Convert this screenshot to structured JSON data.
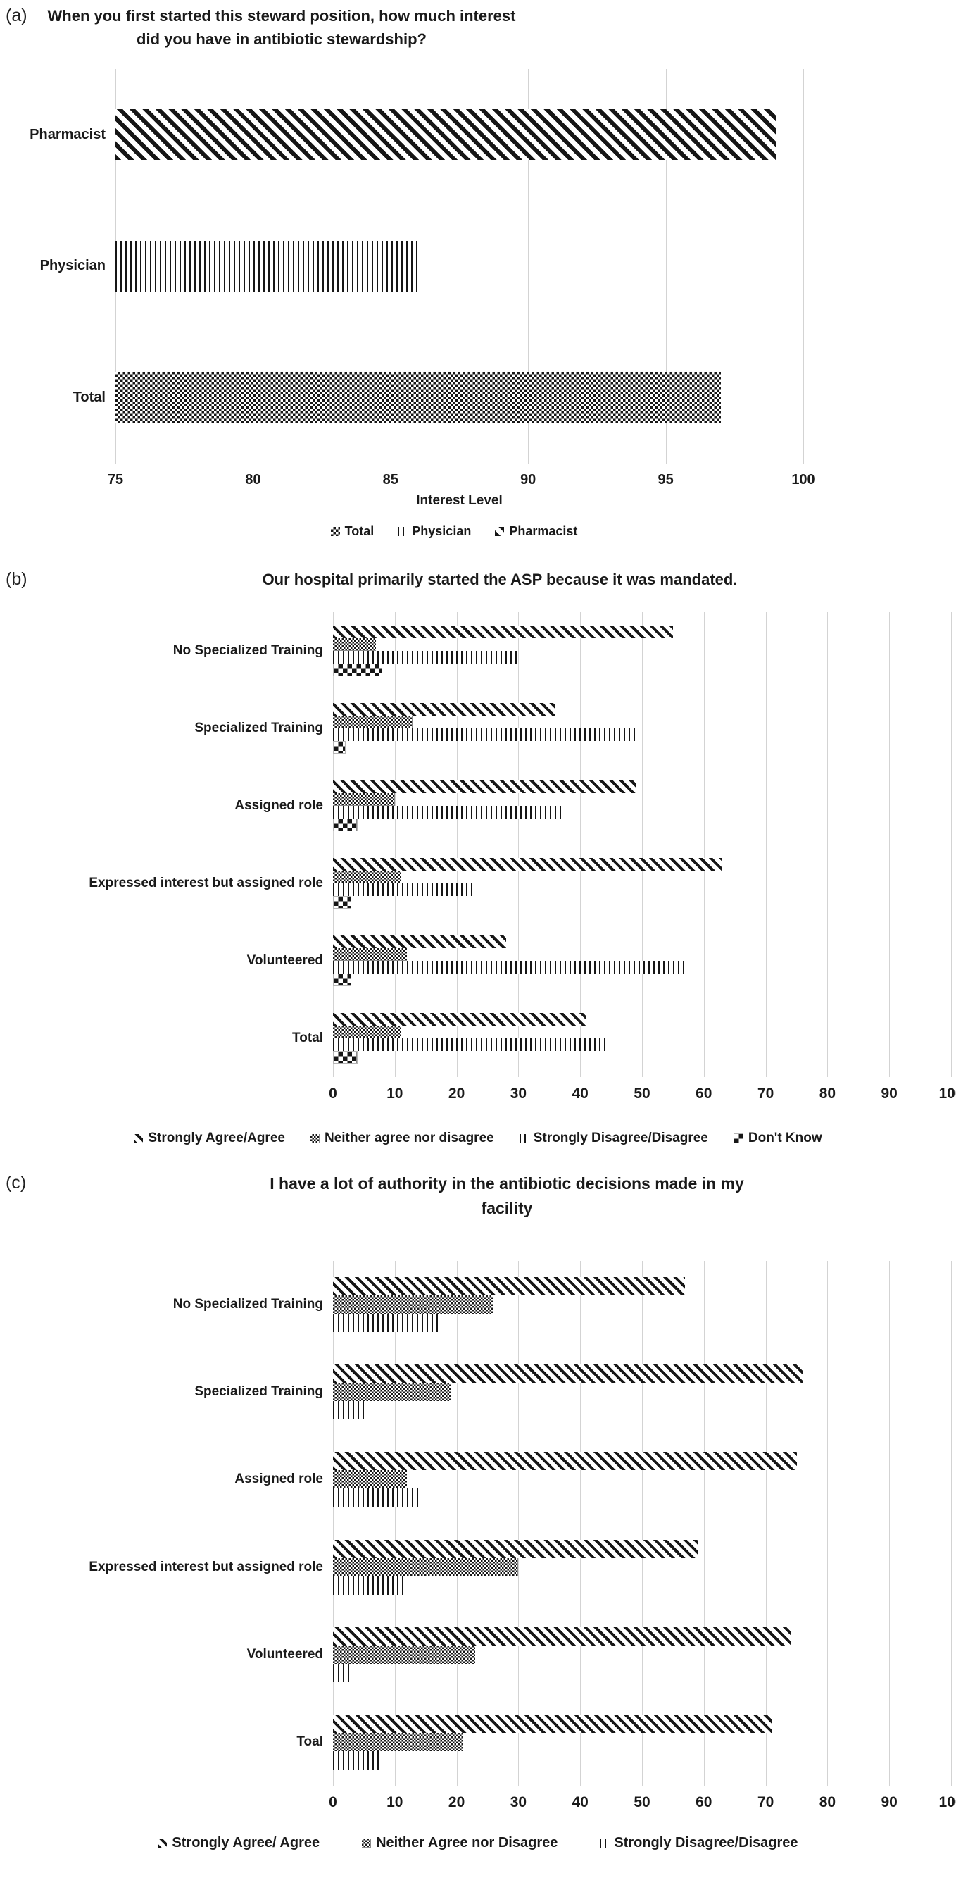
{
  "figure": {
    "background": "#ffffff",
    "text_color": "#1a1a1a",
    "gridline_color": "#d3d3d3",
    "bar_color": "#161616"
  },
  "panel_a": {
    "label": "(a)",
    "title_line1": "When you first started this steward position, how much interest",
    "title_line2": "did you have in antibiotic stewardship?",
    "xaxis_title": "Interest Level",
    "legend": [
      {
        "label": "Total",
        "pattern": "pat-dots"
      },
      {
        "label": "Physician",
        "pattern": "pat-vlines"
      },
      {
        "label": "Pharmacist",
        "pattern": "pat-diag-a"
      }
    ],
    "chart_data": {
      "type": "bar",
      "orientation": "horizontal",
      "title": "When you first started this steward position, how much interest did you have in antibiotic stewardship?",
      "xlabel": "Interest Level",
      "ylabel": "",
      "xlim": [
        75,
        100
      ],
      "xticks": [
        75,
        80,
        85,
        90,
        95,
        100
      ],
      "grid": true,
      "legend_position": "bottom",
      "categories": [
        "Pharmacist",
        "Physician",
        "Total"
      ],
      "values": [
        99,
        86,
        97
      ],
      "patterns": [
        "pat-diag-a",
        "pat-vlines",
        "pat-dots"
      ]
    }
  },
  "panel_b": {
    "label": "(b)",
    "title_line1": "Our hospital primarily started the ASP because it was mandated.",
    "legend": [
      {
        "label": "Strongly Agree/Agree",
        "pattern": "pat-diag"
      },
      {
        "label": "Neither agree nor disagree",
        "pattern": "pat-dots-sm"
      },
      {
        "label": "Strongly Disagree/Disagree",
        "pattern": "pat-vlines"
      },
      {
        "label": "Don't Know",
        "pattern": "pat-checker"
      }
    ],
    "chart_data": {
      "type": "bar",
      "orientation": "horizontal",
      "title": "Our hospital primarily started the ASP because it was mandated.",
      "xlabel": "",
      "xlim": [
        0,
        100
      ],
      "xticks": [
        0,
        10,
        20,
        30,
        40,
        50,
        60,
        70,
        80,
        90,
        100
      ],
      "grid": true,
      "legend_position": "bottom",
      "categories": [
        "No Specialized Training",
        "Specialized Training",
        "Assigned role",
        "Expressed interest but assigned role",
        "Volunteered",
        "Total"
      ],
      "series": [
        {
          "name": "Strongly Agree/Agree",
          "pattern": "pat-diag",
          "values": [
            55,
            36,
            49,
            63,
            28,
            41
          ]
        },
        {
          "name": "Neither agree nor disagree",
          "pattern": "pat-dots-sm",
          "values": [
            7,
            13,
            10,
            11,
            12,
            11
          ]
        },
        {
          "name": "Strongly Disagree/Disagree",
          "pattern": "pat-vlines",
          "values": [
            30,
            49,
            37,
            23,
            57,
            44
          ]
        },
        {
          "name": "Don't Know",
          "pattern": "pat-checker",
          "values": [
            8,
            2,
            4,
            3,
            3,
            4
          ]
        }
      ]
    }
  },
  "panel_c": {
    "label": "(c)",
    "title_line1": "I have a lot of authority in the antibiotic decisions made in my",
    "title_line2": "facility",
    "legend": [
      {
        "label": "Strongly Agree/ Agree",
        "pattern": "pat-diag"
      },
      {
        "label": "Neither Agree nor Disagree",
        "pattern": "pat-dots-sm"
      },
      {
        "label": "Strongly Disagree/Disagree",
        "pattern": "pat-vlines"
      }
    ],
    "chart_data": {
      "type": "bar",
      "orientation": "horizontal",
      "title": "I have a lot of authority in the antibiotic decisions made in my facility",
      "xlabel": "",
      "xlim": [
        0,
        100
      ],
      "xticks": [
        0,
        10,
        20,
        30,
        40,
        50,
        60,
        70,
        80,
        90,
        100
      ],
      "grid": true,
      "legend_position": "bottom",
      "categories": [
        "No Specialized Training",
        "Specialized Training",
        "Assigned role",
        "Expressed interest but assigned role",
        "Volunteered",
        "Toal"
      ],
      "series": [
        {
          "name": "Strongly Agree/ Agree",
          "pattern": "pat-diag",
          "values": [
            57,
            76,
            75,
            59,
            74,
            71
          ]
        },
        {
          "name": "Neither Agree nor Disagree",
          "pattern": "pat-dots-sm",
          "values": [
            26,
            19,
            12,
            30,
            23,
            21
          ]
        },
        {
          "name": "Strongly Disagree/Disagree",
          "pattern": "pat-vlines",
          "values": [
            17,
            5,
            14,
            12,
            3,
            8
          ]
        }
      ]
    }
  }
}
